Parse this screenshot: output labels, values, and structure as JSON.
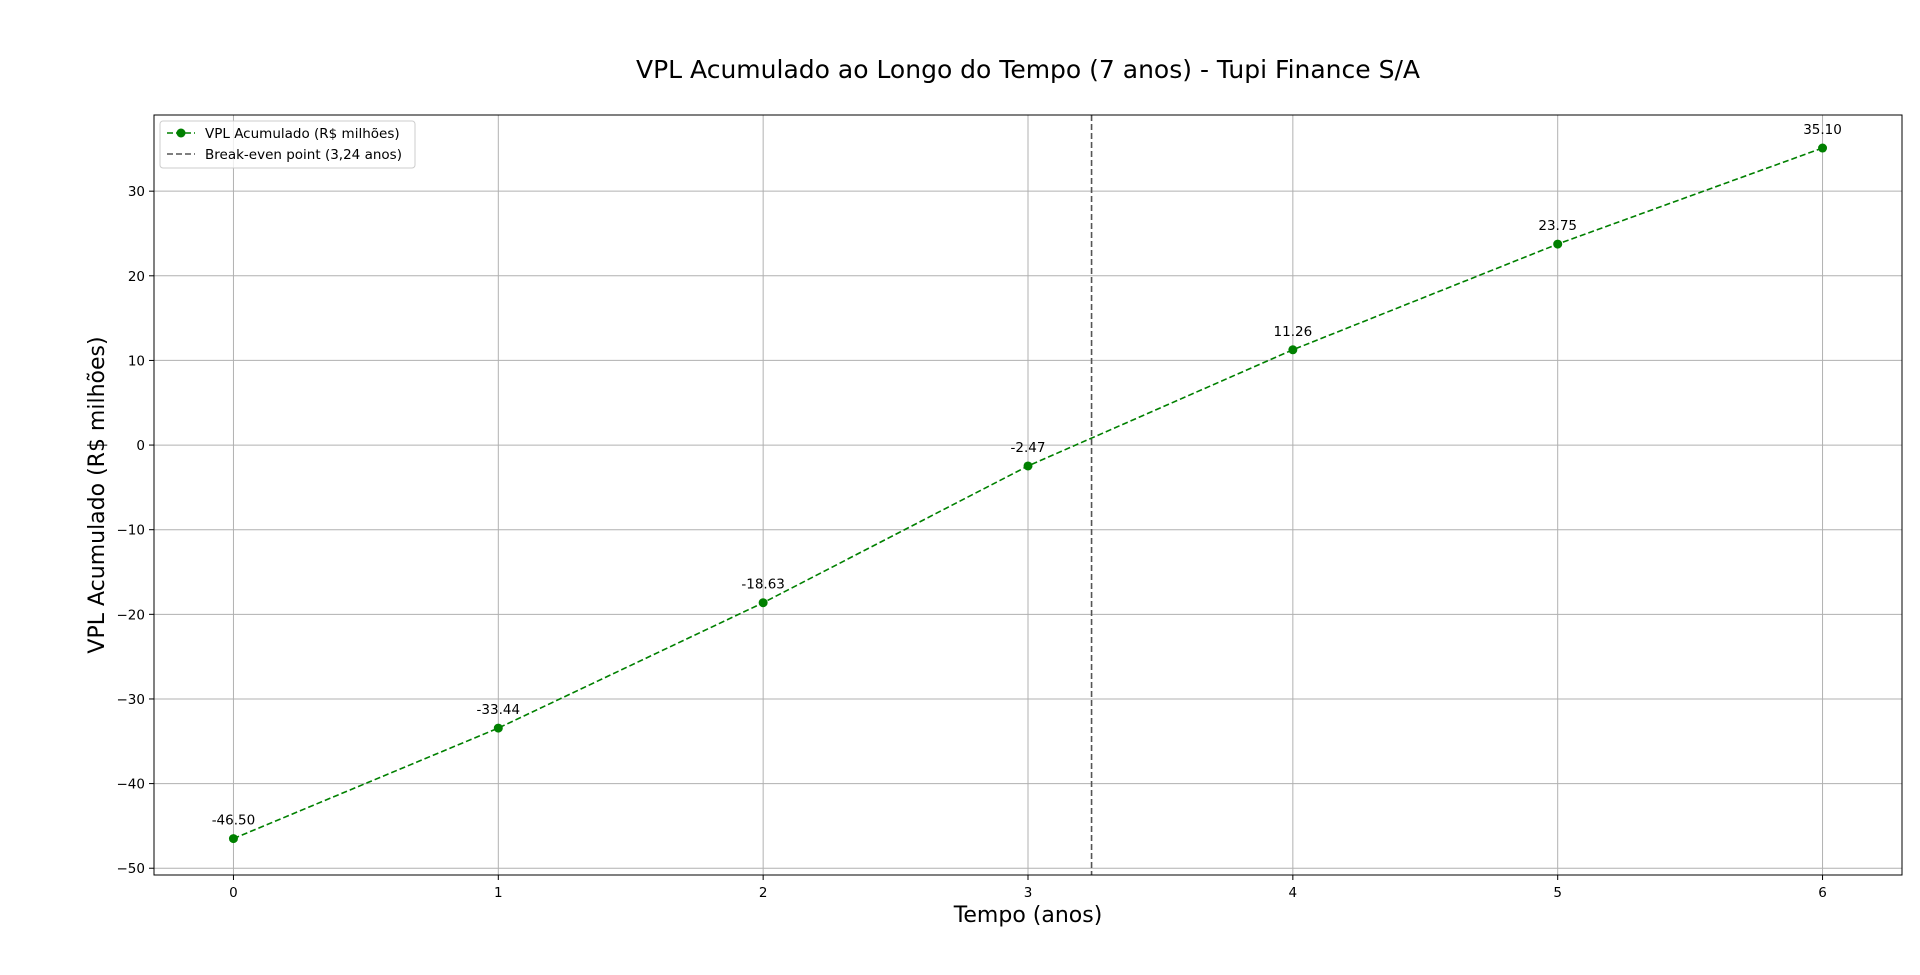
{
  "chart_data": {
    "type": "line",
    "title": "VPL Acumulado ao Longo do Tempo (7 anos) - Tupi Finance S/A",
    "xlabel": "Tempo (anos)",
    "ylabel": "VPL Acumulado (R$ milhões)",
    "x": [
      0,
      1,
      2,
      3,
      4,
      5,
      6
    ],
    "series": [
      {
        "name": "VPL Acumulado (R$ milhões)",
        "values": [
          -46.5,
          -33.44,
          -18.63,
          -2.47,
          11.26,
          23.75,
          35.1
        ],
        "labels": [
          "-46.50",
          "-33.44",
          "-18.63",
          "-2.47",
          "11.26",
          "23.75",
          "35.10"
        ],
        "color": "#008000",
        "line_style": "dashed",
        "marker": "circle"
      }
    ],
    "vline": {
      "name": "Break-even point (3,24 anos)",
      "x": 3.24,
      "color": "#555555",
      "line_style": "dashed"
    },
    "xlim": [
      -0.3,
      6.3
    ],
    "ylim": [
      -50.8,
      39.0
    ],
    "xticks": [
      0,
      1,
      2,
      3,
      4,
      5,
      6
    ],
    "yticks": [
      -50,
      -40,
      -30,
      -20,
      -10,
      0,
      10,
      20,
      30
    ],
    "ytick_labels": [
      "−50",
      "−40",
      "−30",
      "−20",
      "−10",
      "0",
      "10",
      "20",
      "30"
    ],
    "grid": true,
    "legend_position": "upper-left"
  }
}
